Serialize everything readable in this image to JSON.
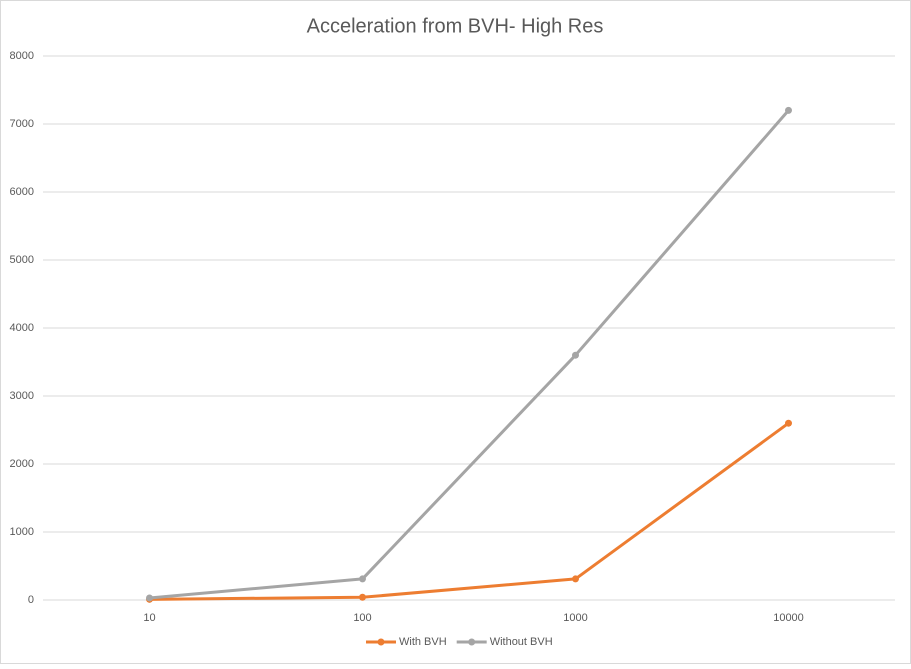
{
  "chart_data": {
    "type": "line",
    "title": "Acceleration from BVH- High Res",
    "categories": [
      "10",
      "100",
      "1000",
      "10000"
    ],
    "series": [
      {
        "name": "With BVH",
        "color": "#ed7d31",
        "values": [
          10,
          40,
          310,
          2600
        ]
      },
      {
        "name": "Without BVH",
        "color": "#a5a5a5",
        "values": [
          30,
          310,
          3600,
          7200
        ]
      }
    ],
    "ylim": [
      0,
      8000
    ],
    "yticks": [
      0,
      1000,
      2000,
      3000,
      4000,
      5000,
      6000,
      7000,
      8000
    ],
    "grid": true,
    "legend": "bottom"
  }
}
